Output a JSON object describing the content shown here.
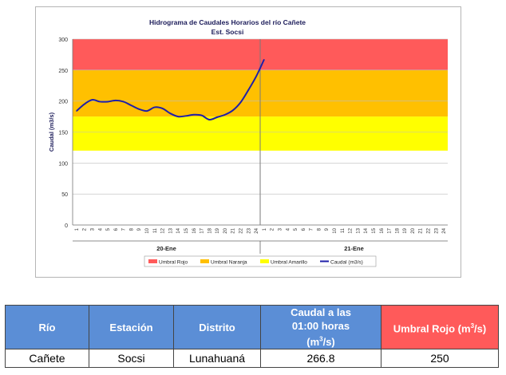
{
  "chart_data": {
    "type": "line",
    "title": "Hidrograma de Caudales Horarios del río Cañete",
    "subtitle": "Est. Socsi",
    "ylabel": "Caudal  (m3/s)",
    "ylim": [
      0,
      300
    ],
    "yticks": [
      0,
      50,
      100,
      150,
      200,
      250,
      300
    ],
    "hour_ticks": [
      "1",
      "2",
      "3",
      "4",
      "5",
      "6",
      "7",
      "8",
      "9",
      "10",
      "11",
      "12",
      "13",
      "14",
      "15",
      "16",
      "17",
      "18",
      "19",
      "20",
      "21",
      "22",
      "23",
      "24",
      "1",
      "2",
      "3",
      "4",
      "5",
      "6",
      "7",
      "8",
      "9",
      "10",
      "11",
      "12",
      "13",
      "14",
      "15",
      "16",
      "17",
      "18",
      "19",
      "20",
      "21",
      "22",
      "23",
      "24"
    ],
    "days": [
      "20-Ene",
      "21-Ene"
    ],
    "bands": [
      {
        "name": "Umbral Rojo",
        "from": 250,
        "to": 300,
        "color": "#ff5a5a"
      },
      {
        "name": "Umbral Naranja",
        "from": 175,
        "to": 250,
        "color": "#ffc000"
      },
      {
        "name": "Umbral Amarillo",
        "from": 120,
        "to": 175,
        "color": "#ffff00"
      }
    ],
    "series": [
      {
        "name": "Caudal (m3/s)",
        "color": "#1f1fa8",
        "x": [
          1,
          2,
          3,
          4,
          5,
          6,
          7,
          8,
          9,
          10,
          11,
          12,
          13,
          14,
          15,
          16,
          17,
          18,
          19,
          20,
          21,
          22,
          23,
          24,
          25
        ],
        "values": [
          184,
          195,
          202,
          199,
          199,
          201,
          199,
          193,
          187,
          184,
          190,
          188,
          180,
          175,
          176,
          178,
          177,
          170,
          174,
          178,
          185,
          198,
          218,
          240,
          267
        ]
      }
    ],
    "legend": [
      "Umbral Rojo",
      "Umbral Naranja",
      "Umbral Amarillo",
      "Caudal (m3/s)"
    ],
    "legend_position": "bottom"
  },
  "table": {
    "headers": {
      "rio": "Río",
      "estacion": "Estación",
      "distrito": "Distrito",
      "caudal_line1": "Caudal a las",
      "caudal_line2": "01:00 horas",
      "caudal_unit_pre": "(m",
      "caudal_unit_sup": "3",
      "caudal_unit_post": "/s)",
      "umbral_pre": "Umbral Rojo (m",
      "umbral_sup": "3",
      "umbral_post": "/s)"
    },
    "row": {
      "rio": "Cañete",
      "estacion": "Socsi",
      "distrito": "Lunahuaná",
      "caudal": "266.8",
      "umbral": "250"
    }
  }
}
